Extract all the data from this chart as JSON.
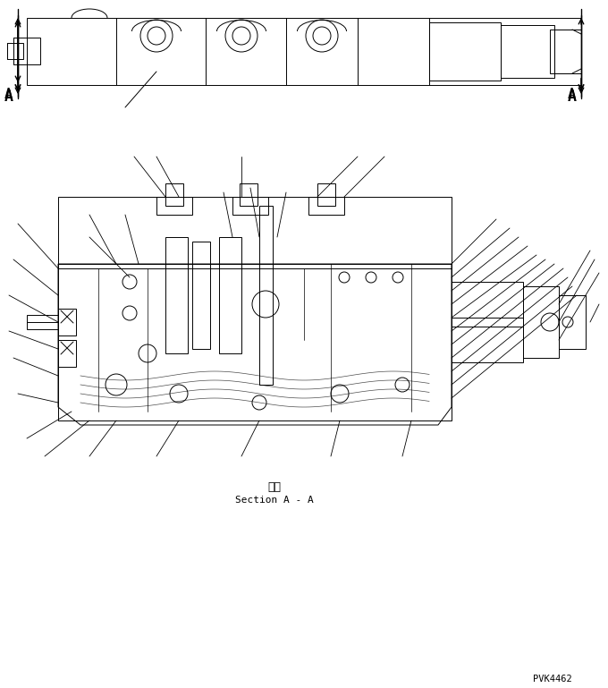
{
  "background_color": "#ffffff",
  "line_color": "#000000",
  "section_label_japanese": "断面",
  "section_label_english": "Section A - A",
  "watermark": "PVK4462",
  "label_A_left": "A",
  "label_A_right": "A",
  "fig_width": 6.8,
  "fig_height": 7.69,
  "dpi": 100
}
